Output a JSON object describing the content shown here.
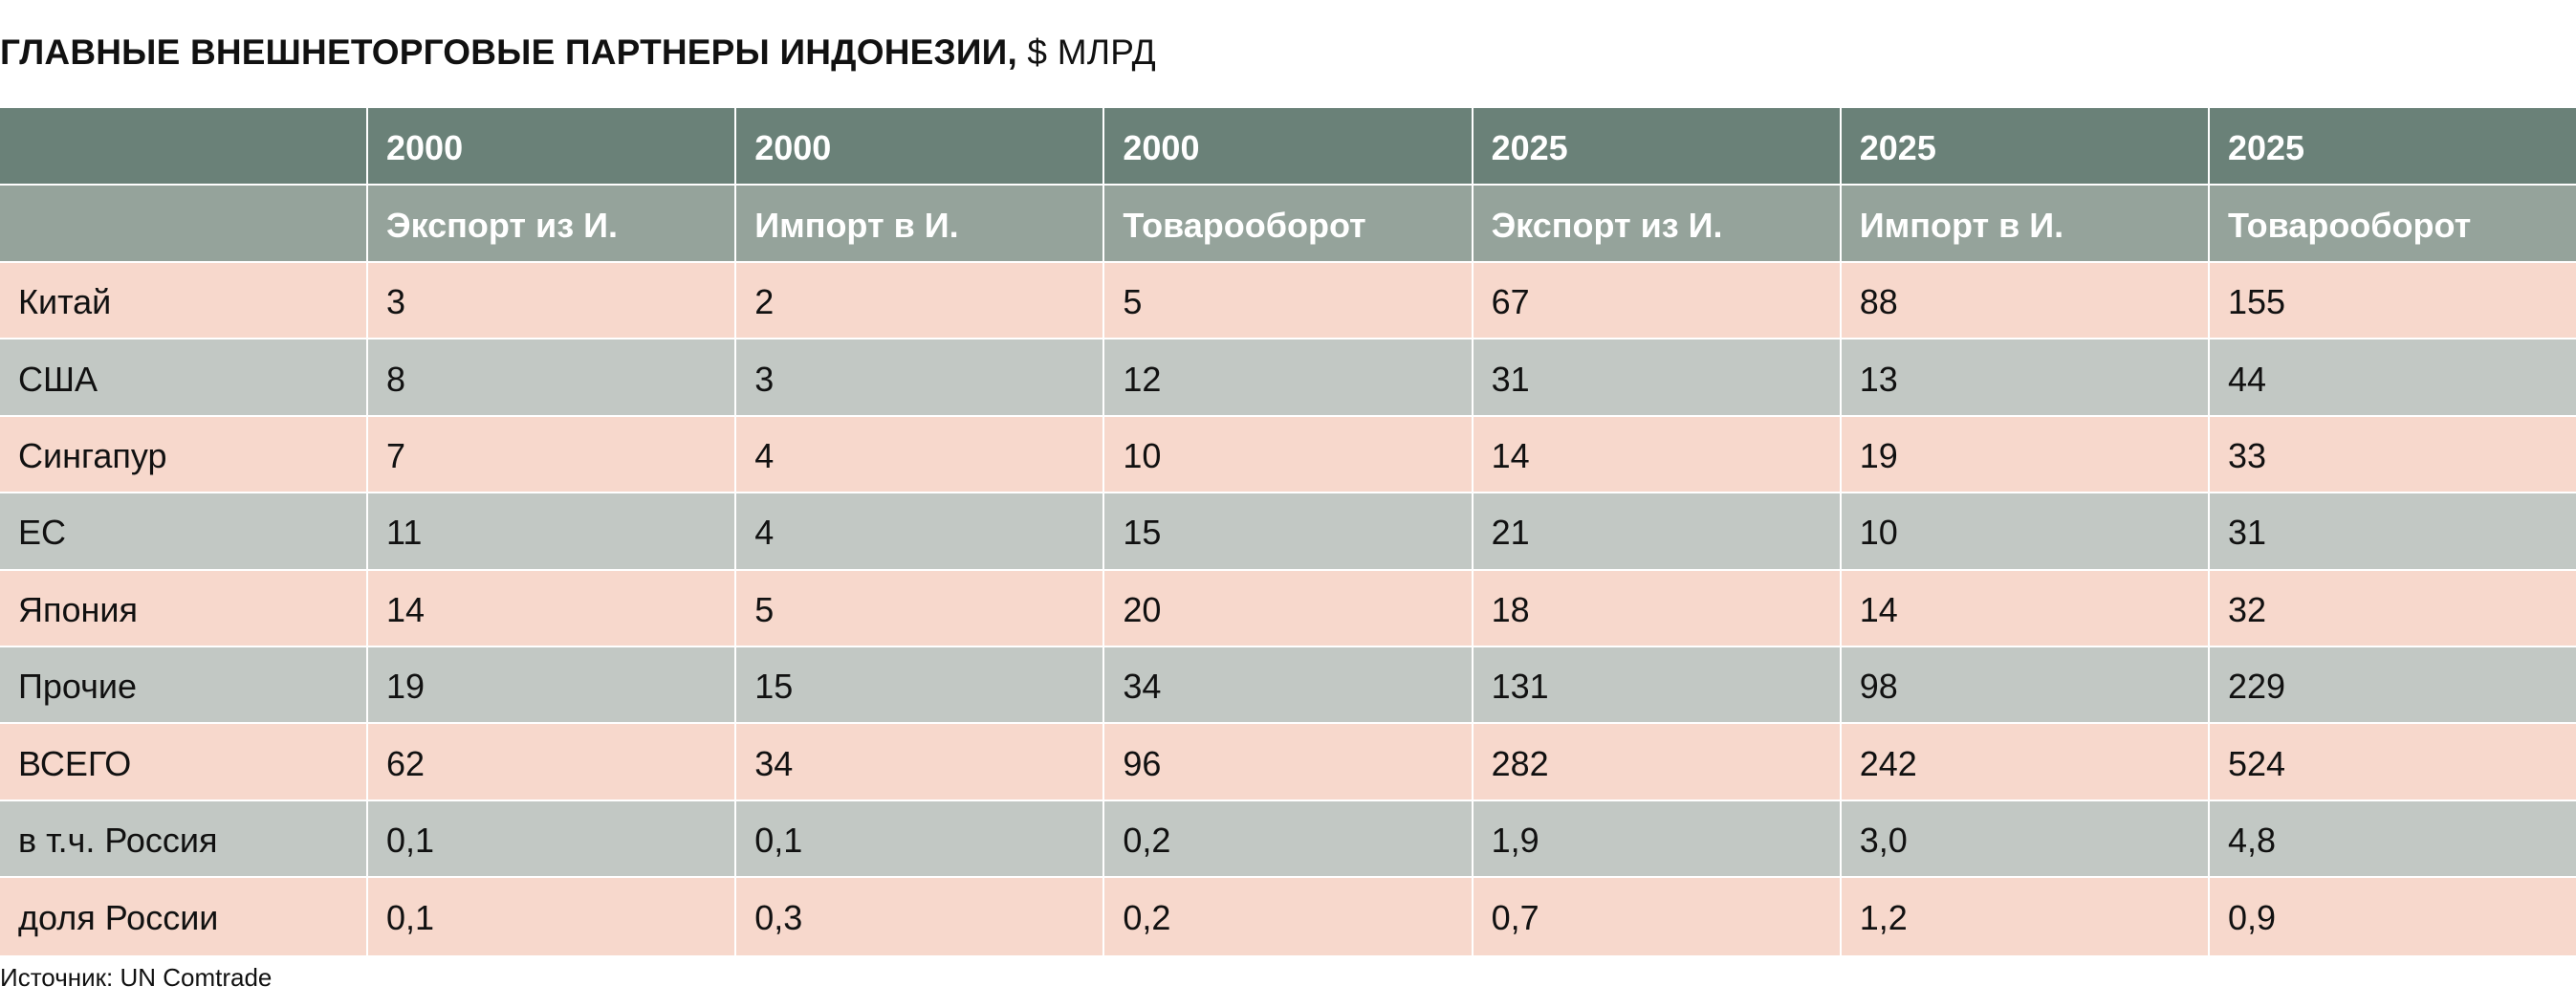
{
  "title": {
    "main": "ГЛАВНЫЕ ВНЕШНЕТОРГОВЫЕ ПАРТНЕРЫ ИНДОНЕЗИИ,",
    "unit": " $ МЛРД"
  },
  "colors": {
    "header_year_bg": "#6a8178",
    "header_kind_bg": "#95a39b",
    "row_pink_bg": "#f7d8cc",
    "row_gray_bg": "#c2c8c4",
    "header_text": "#ffffff",
    "body_text": "#111111"
  },
  "table": {
    "header_years": [
      "",
      "2000",
      "2000",
      "2000",
      "2025",
      "2025",
      "2025"
    ],
    "header_kinds": [
      "",
      "Экспорт из И.",
      "Импорт в И.",
      "Товарооборот",
      "Экспорт из И.",
      "Импорт в И.",
      "Товарооборот"
    ],
    "rows": [
      {
        "label": "Китай",
        "values": [
          "3",
          "2",
          "5",
          "67",
          "88",
          "155"
        ]
      },
      {
        "label": "США",
        "values": [
          "8",
          "3",
          "12",
          "31",
          "13",
          "44"
        ]
      },
      {
        "label": "Сингапур",
        "values": [
          "7",
          "4",
          "10",
          "14",
          "19",
          "33"
        ]
      },
      {
        "label": "ЕС",
        "values": [
          "11",
          "4",
          "15",
          "21",
          "10",
          "31"
        ]
      },
      {
        "label": "Япония",
        "values": [
          "14",
          "5",
          "20",
          "18",
          "14",
          "32"
        ]
      },
      {
        "label": "Прочие",
        "values": [
          "19",
          "15",
          "34",
          "131",
          "98",
          "229"
        ]
      },
      {
        "label": "ВСЕГО",
        "values": [
          "62",
          "34",
          "96",
          "282",
          "242",
          "524"
        ]
      },
      {
        "label": "в т.ч. Россия",
        "values": [
          "0,1",
          "0,1",
          "0,2",
          "1,9",
          "3,0",
          "4,8"
        ]
      },
      {
        "label": "доля России",
        "values": [
          "0,1",
          "0,3",
          "0,2",
          "0,7",
          "1,2",
          "0,9"
        ]
      }
    ]
  },
  "source": "Источник: UN Comtrade"
}
